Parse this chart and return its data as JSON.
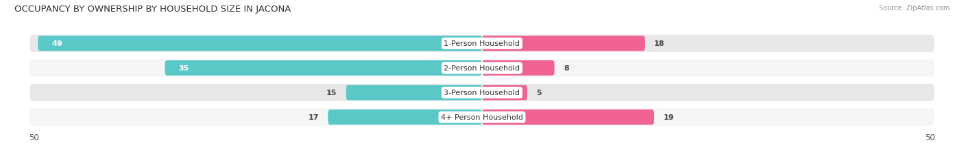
{
  "title": "OCCUPANCY BY OWNERSHIP BY HOUSEHOLD SIZE IN JACONA",
  "source": "Source: ZipAtlas.com",
  "categories": [
    "1-Person Household",
    "2-Person Household",
    "3-Person Household",
    "4+ Person Household"
  ],
  "owner_values": [
    49,
    35,
    15,
    17
  ],
  "renter_values": [
    18,
    8,
    5,
    19
  ],
  "owner_color": "#5BC8C8",
  "renter_color": "#F06292",
  "row_bg_colors": [
    "#E8E8E8",
    "#F5F5F5",
    "#E8E8E8",
    "#F5F5F5"
  ],
  "max_val": 50,
  "title_fontsize": 9.5,
  "label_fontsize": 8.5,
  "bar_value_fontsize": 8.0
}
